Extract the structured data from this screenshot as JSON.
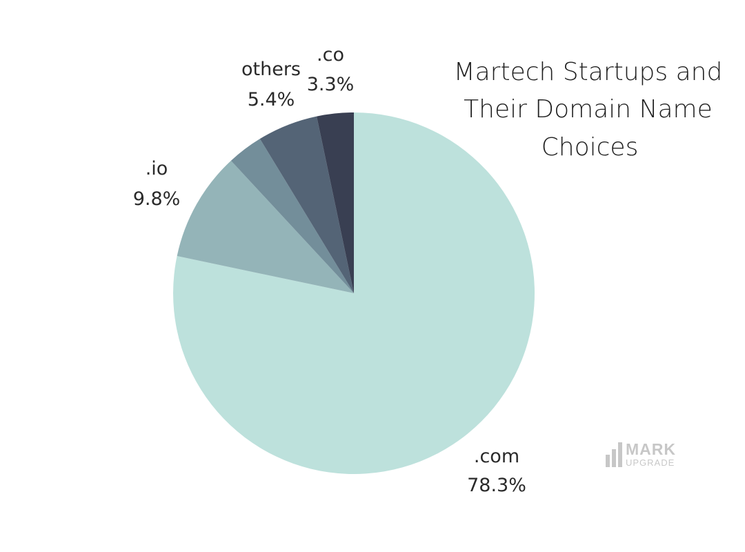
{
  "chart_data": {
    "type": "pie",
    "title_lines": [
      "Martech Startups and",
      "Their Domain Name",
      "Choices"
    ],
    "slices": [
      {
        "label": ".com",
        "value": 78.3,
        "display": "78.3%",
        "color": "#bde1dc"
      },
      {
        "label": ".io",
        "value": 9.8,
        "display": "9.8%",
        "color": "#94b4b8"
      },
      {
        "label": "",
        "value": 3.2,
        "display": "",
        "color": "#738e9a"
      },
      {
        "label": "others",
        "value": 5.4,
        "display": "5.4%",
        "color": "#546476"
      },
      {
        "label": ".co",
        "value": 3.3,
        "display": "3.3%",
        "color": "#393f52"
      }
    ]
  },
  "watermark": {
    "main": "MARK",
    "sub": "UPGRADE"
  }
}
